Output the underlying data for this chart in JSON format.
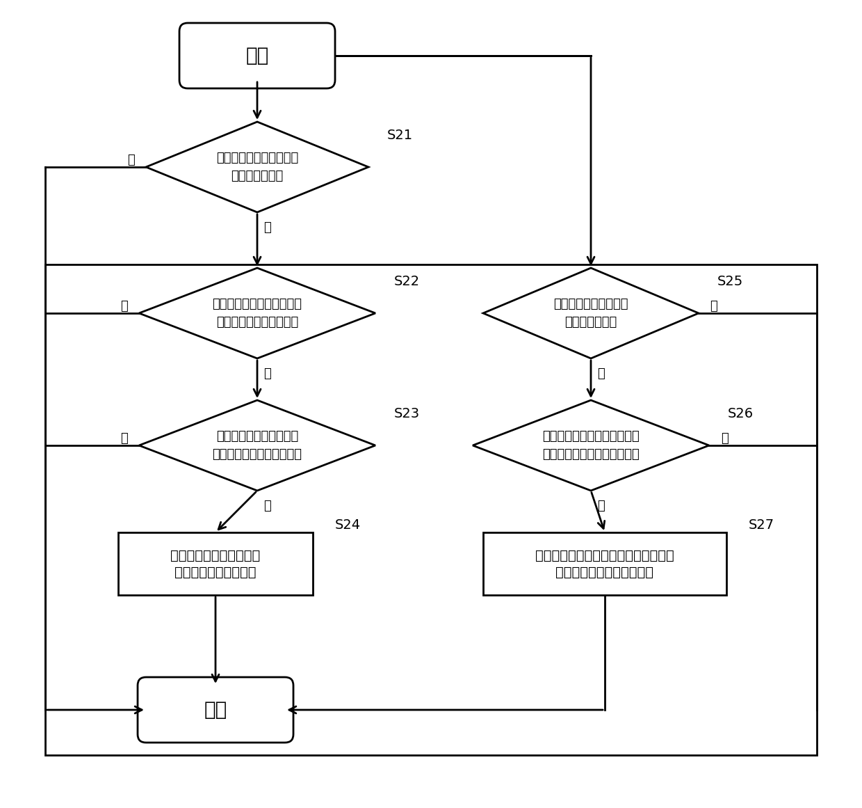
{
  "bg_color": "#ffffff",
  "line_color": "#000000",
  "text_color": "#000000",
  "start_text": "开始",
  "end_text": "结束",
  "s21_text": "S21",
  "s22_text": "S22",
  "s23_text": "S23",
  "s24_text": "S24",
  "s25_text": "S25",
  "s26_text": "S26",
  "s27_text": "S27",
  "d1_line1": "监测系统消息中是否出现",
  "d1_line2": "块设备插入消息",
  "d2_line1": "判断块设备插入消息对应的",
  "d2_line2": "块设备是否为目标块设备",
  "d3_line1": "判断多路径黑名单中是否",
  "d3_line2": "存在目标块设备的设备信息",
  "d4_line1": "判断多路径黑名单是否存在块",
  "d4_line2": "设备移除消息对应的设备信息",
  "r1_line1": "将目标块设备的设备信息",
  "r1_line2": "添加到多路径黑名单中",
  "r2_line1": "将块设备移除消息对应的块设备的设备",
  "r2_line2": "信息从多路径黑名单中移除",
  "d5_line1": "监测系统消息是否出现",
  "d5_line2": "块设备移除消息",
  "yes": "是",
  "no": "否"
}
